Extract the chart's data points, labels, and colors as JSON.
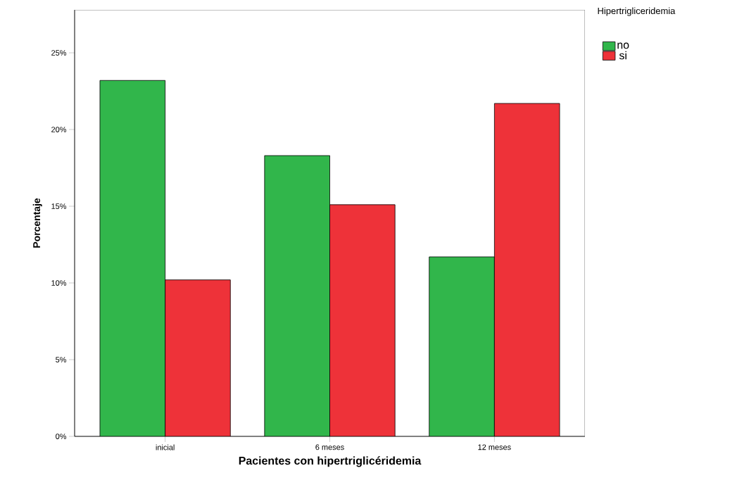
{
  "chart_data": {
    "type": "bar",
    "xlabel": "Pacientes con hipertriglicéridemia",
    "ylabel": "Porcentaje",
    "legend_title": "Hipertrigliceridemia",
    "categories": [
      "inicial",
      "6 meses",
      "12 meses"
    ],
    "series": [
      {
        "name": "no",
        "color": "#31b64b",
        "values": [
          23.2,
          18.3,
          11.7
        ]
      },
      {
        "name": "si",
        "color": "#ee3239",
        "values": [
          10.2,
          15.1,
          21.7
        ]
      }
    ],
    "ylim": [
      0,
      27.8
    ],
    "yticks": [
      {
        "value": 0,
        "label": "0%"
      },
      {
        "value": 5,
        "label": "5%"
      },
      {
        "value": 10,
        "label": "10%"
      },
      {
        "value": 15,
        "label": "15%"
      },
      {
        "value": 20,
        "label": "20%"
      },
      {
        "value": 25,
        "label": "25%"
      }
    ],
    "grid": false,
    "legend": "top right"
  }
}
